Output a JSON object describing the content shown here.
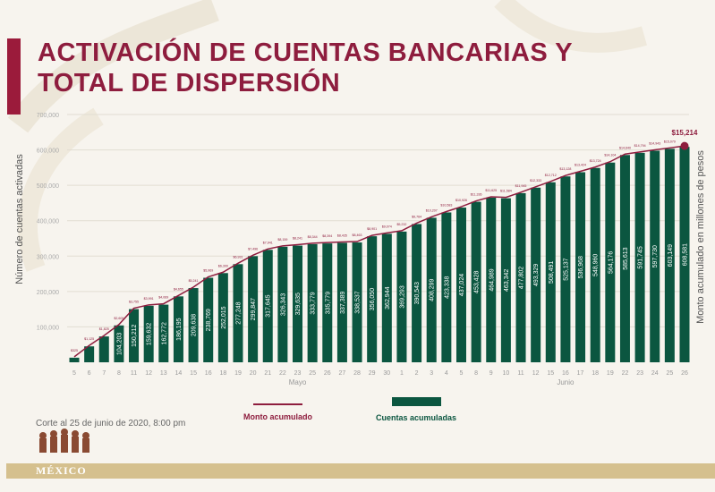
{
  "title_line1": "ACTIVACIÓN DE CUENTAS BANCARIAS Y",
  "title_line2": "TOTAL DE DISPERSIÓN",
  "footnote": "Corte al 25 de junio de 2020, 8:00 pm",
  "logo_text": "MÉXICO",
  "colors": {
    "bars": "#0b5640",
    "line": "#8e1d3e",
    "title": "#8e1d3e",
    "gold": "#d5c08e"
  },
  "chart_data": {
    "type": "bar",
    "ylabel": "Número de cuentas activadas",
    "y2label": "Monto acumulado en millones de pesos",
    "ylim": [
      0,
      700000
    ],
    "yticks": [
      "100,000",
      "200,000",
      "300,000",
      "400,000",
      "500,000",
      "600,000",
      "700,000"
    ],
    "grid": true,
    "legend_position": "bottom",
    "month_labels": [
      {
        "label": "Mayo",
        "at_index": 15
      },
      {
        "label": "Junio",
        "at_index": 33
      }
    ],
    "categories": [
      "5",
      "6",
      "7",
      "8",
      "11",
      "12",
      "13",
      "14",
      "15",
      "16",
      "18",
      "19",
      "20",
      "21",
      "22",
      "23",
      "25",
      "26",
      "27",
      "28",
      "29",
      "30",
      "1",
      "2",
      "3",
      "4",
      "5",
      "8",
      "9",
      "10",
      "11",
      "12",
      "15",
      "16",
      "17",
      "18",
      "19",
      "22",
      "23",
      "24",
      "25",
      "26"
    ],
    "series": [
      {
        "name": "Cuentas acumuladas",
        "type": "bar",
        "values": [
          13000,
          45000,
          73000,
          104203,
          150212,
          159632,
          162772,
          186195,
          209638,
          238769,
          252015,
          277248,
          299847,
          317645,
          326343,
          329635,
          333779,
          335779,
          337389,
          338537,
          356050,
          362944,
          369293,
          390543,
          408299,
          423338,
          437024,
          453428,
          464989,
          463342,
          477802,
          493329,
          508491,
          525137,
          536968,
          548960,
          564176,
          585613,
          591745,
          597730,
          603149,
          608581
        ],
        "labels": [
          "",
          "",
          "",
          "104,203",
          "150,212",
          "159,632",
          "162,772",
          "186,195",
          "209,638",
          "238,769",
          "252,015",
          "277,248",
          "299,847",
          "317,645",
          "326,343",
          "329,635",
          "333,779",
          "335,779",
          "337,389",
          "338,537",
          "356,050",
          "362,944",
          "369,293",
          "390,543",
          "408,299",
          "423,338",
          "437,024",
          "453,428",
          "464,989",
          "463,342",
          "477,802",
          "493,329",
          "508,491",
          "525,137",
          "536,968",
          "548,960",
          "564,176",
          "585,613",
          "591,745",
          "597,730",
          "603,149",
          "608,581"
        ]
      },
      {
        "name": "Monto acumulado",
        "type": "line",
        "values": [
          325,
          1125,
          1825,
          2605,
          3755,
          3991,
          4069,
          4655,
          5241,
          5969,
          6300,
          6931,
          7496,
          7941,
          8159,
          8241,
          8344,
          8394,
          8435,
          8463,
          8901,
          9074,
          9232,
          9764,
          10207,
          10583,
          10926,
          11336,
          11625,
          11584,
          11945,
          12333,
          12712,
          13128,
          13424,
          13724,
          14104,
          14640,
          14794,
          14943,
          15079,
          15214
        ],
        "last_label": "$15,214"
      }
    ]
  }
}
